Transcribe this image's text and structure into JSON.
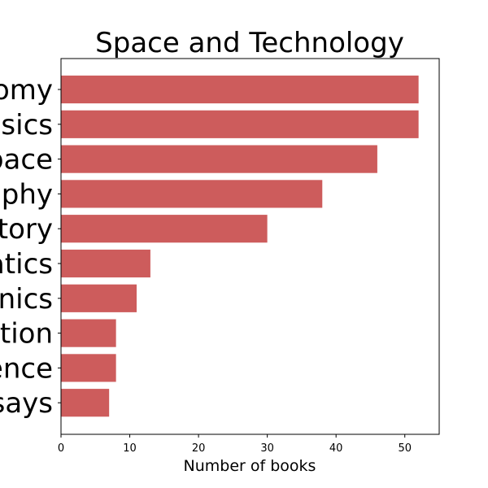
{
  "chart_data": {
    "type": "bar",
    "orientation": "horizontal",
    "title": "Space and Technology",
    "xlabel": "Number of books",
    "ylabel": "",
    "categories": [
      "omy",
      "sics",
      "pace",
      "phy",
      "tory",
      "atics",
      "nics",
      "ation",
      "ence",
      "says"
    ],
    "values": [
      52,
      52,
      46,
      38,
      30,
      13,
      11,
      8,
      8,
      7
    ],
    "xlim": [
      0,
      55
    ],
    "xticks": [
      0,
      10,
      20,
      30,
      40,
      50
    ],
    "bar_color": "#cd5c5c",
    "grid": false,
    "legend": "none"
  }
}
